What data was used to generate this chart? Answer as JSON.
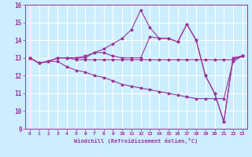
{
  "xlabel": "Windchill (Refroidissement éolien,°C)",
  "background_color": "#cceeff",
  "grid_color": "#ffffff",
  "line_color": "#993399",
  "xlim": [
    -0.5,
    23.5
  ],
  "ylim": [
    9,
    16
  ],
  "yticks": [
    9,
    10,
    11,
    12,
    13,
    14,
    15,
    16
  ],
  "xticks": [
    0,
    1,
    2,
    3,
    4,
    5,
    6,
    7,
    8,
    9,
    10,
    11,
    12,
    13,
    14,
    15,
    16,
    17,
    18,
    19,
    20,
    21,
    22,
    23
  ],
  "lines": [
    [
      13.0,
      12.7,
      12.8,
      13.0,
      13.0,
      13.0,
      13.0,
      13.3,
      13.3,
      13.1,
      13.0,
      13.0,
      13.0,
      14.2,
      14.1,
      14.1,
      13.9,
      14.9,
      14.0,
      12.0,
      11.0,
      9.4,
      13.0,
      13.1
    ],
    [
      13.0,
      12.7,
      12.8,
      12.8,
      12.5,
      12.3,
      12.2,
      12.0,
      11.9,
      11.7,
      11.5,
      11.4,
      11.3,
      11.2,
      11.1,
      11.0,
      10.9,
      10.8,
      10.7,
      10.7,
      10.7,
      10.7,
      12.8,
      13.1
    ],
    [
      13.0,
      12.7,
      12.8,
      13.0,
      13.0,
      13.0,
      13.1,
      13.3,
      13.5,
      13.8,
      14.1,
      14.6,
      15.7,
      14.7,
      14.1,
      14.1,
      13.9,
      14.9,
      14.0,
      12.0,
      11.0,
      9.4,
      13.0,
      13.1
    ],
    [
      13.0,
      12.7,
      12.8,
      13.0,
      13.0,
      12.9,
      12.9,
      12.9,
      12.9,
      12.9,
      12.9,
      12.9,
      12.9,
      12.9,
      12.9,
      12.9,
      12.9,
      12.9,
      12.9,
      12.9,
      12.9,
      12.9,
      12.9,
      13.1
    ]
  ]
}
